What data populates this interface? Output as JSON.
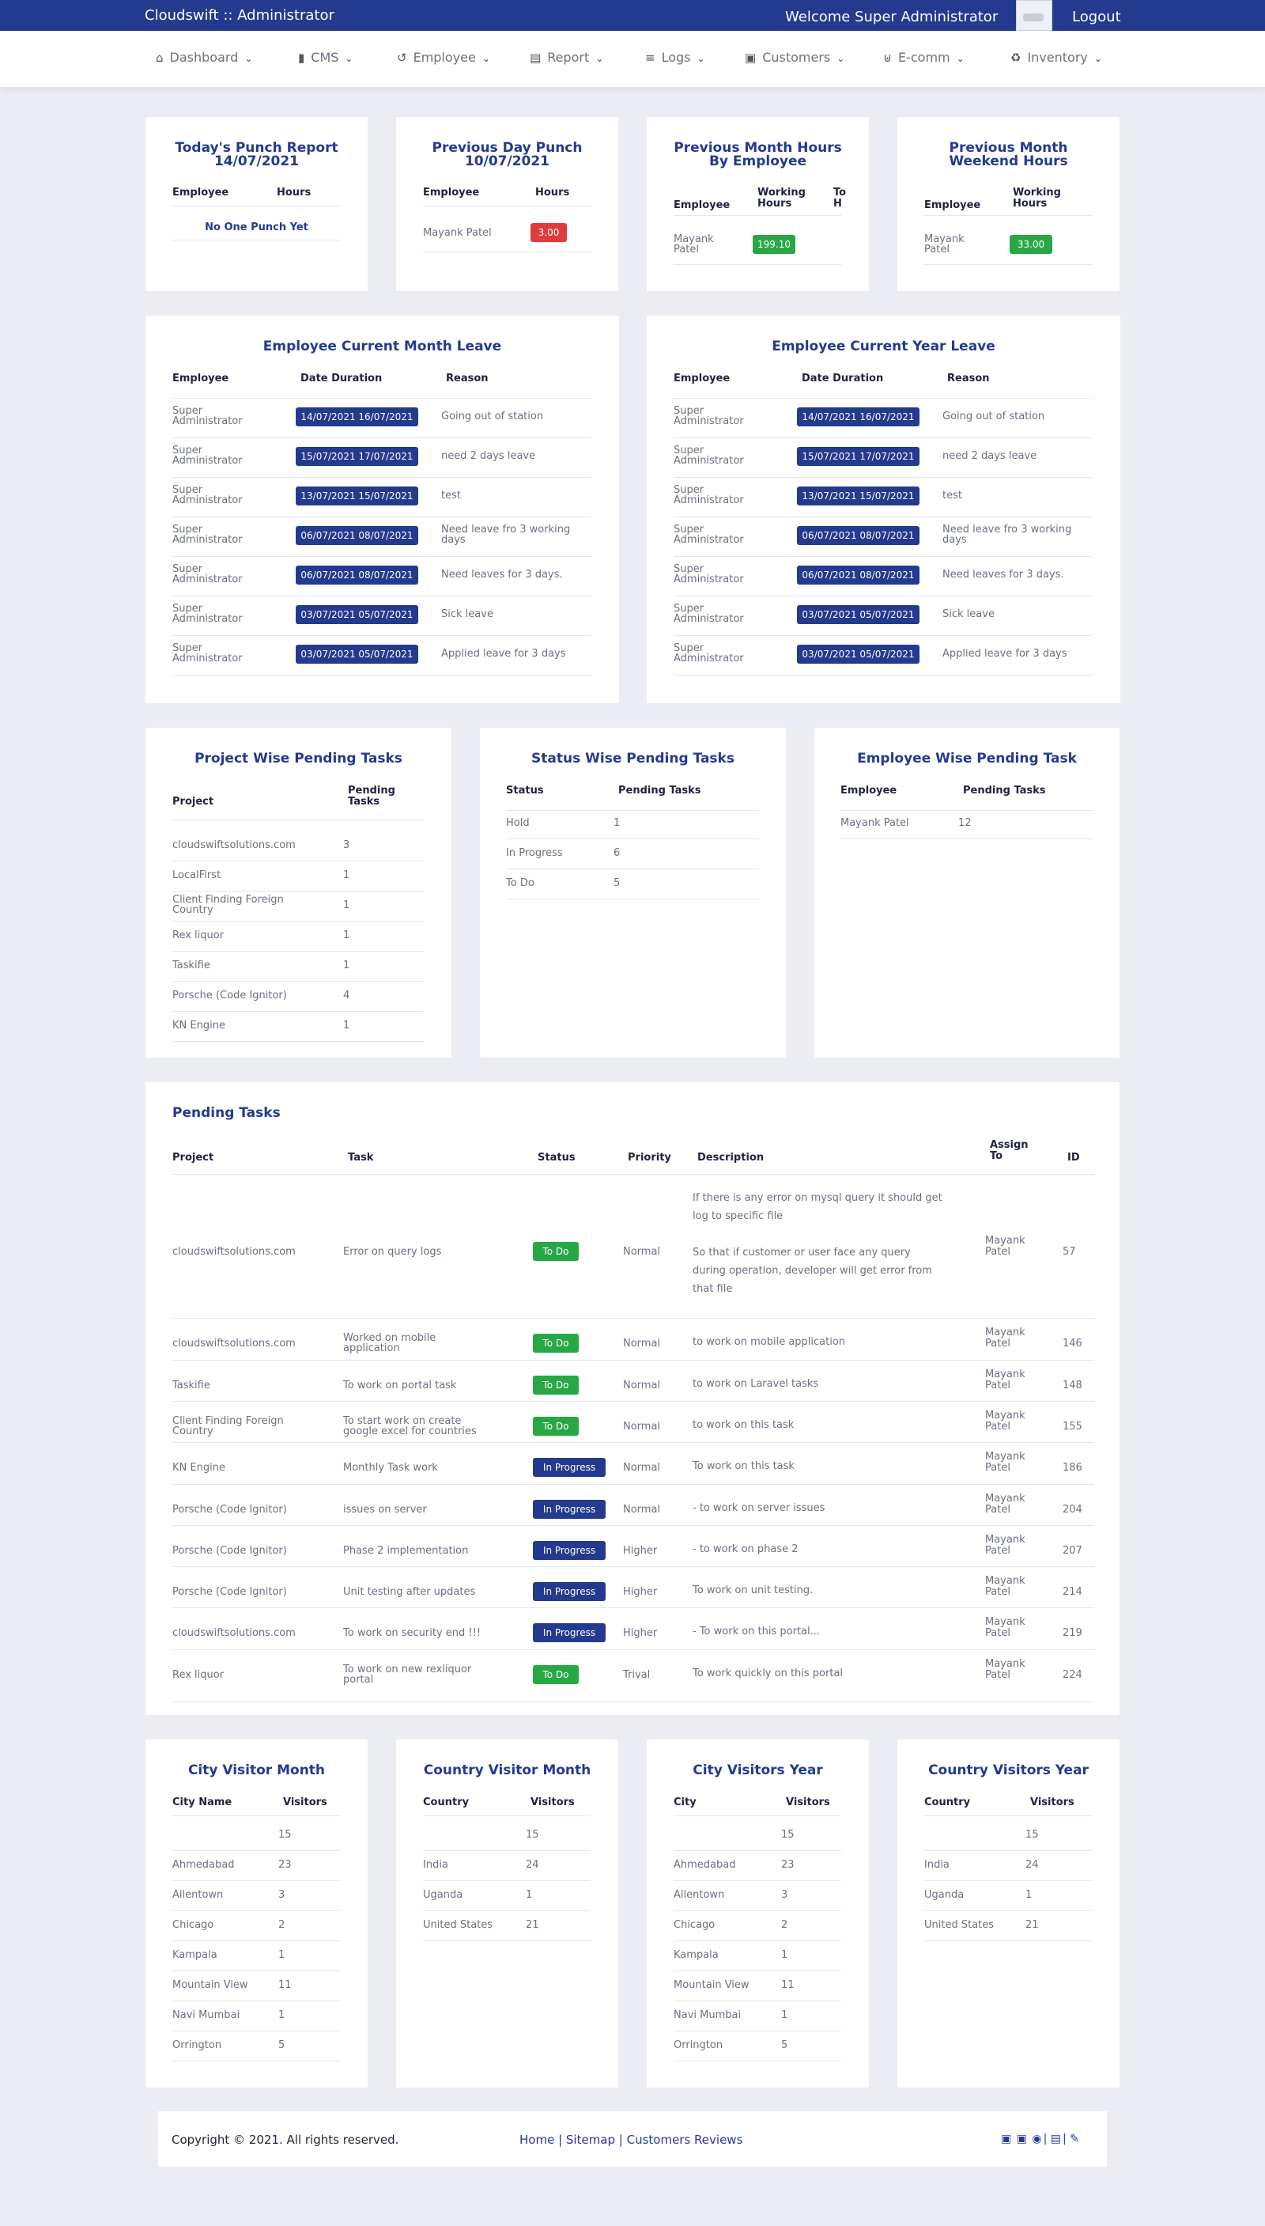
{
  "topbar": {
    "brand": "Cloudswift :: Administrator",
    "welcome": "Welcome Super Administrator",
    "logout": "Logout"
  },
  "nav": [
    {
      "label": "Dashboard",
      "icon": "home-icon",
      "glyph": "⌂"
    },
    {
      "label": "CMS",
      "icon": "mobile-icon",
      "glyph": "▮"
    },
    {
      "label": "Employee",
      "icon": "history-icon",
      "glyph": "↺"
    },
    {
      "label": "Report",
      "icon": "book-icon",
      "glyph": "▤"
    },
    {
      "label": "Logs",
      "icon": "list-icon",
      "glyph": "≡"
    },
    {
      "label": "Customers",
      "icon": "gallery-icon",
      "glyph": "▣"
    },
    {
      "label": "E-comm",
      "icon": "basket-icon",
      "glyph": "⊎"
    },
    {
      "label": "Inventory",
      "icon": "recycle-icon",
      "glyph": "♻"
    }
  ],
  "punch_today": {
    "title1": "Today's Punch Report",
    "title2": "14/07/2021",
    "h_employee": "Employee",
    "h_hours": "Hours",
    "empty": "No One Punch Yet"
  },
  "punch_prev": {
    "title1": "Previous Day Punch",
    "title2": "10/07/2021",
    "h_employee": "Employee",
    "h_hours": "Hours",
    "rows": [
      {
        "employee": "Mayank Patel",
        "hours": "3.00"
      }
    ]
  },
  "month_hours": {
    "title1": "Previous Month Hours",
    "title2": "By Employee",
    "h_employee": "Employee",
    "h_working1": "Working",
    "h_working2": "Hours",
    "h_extra1": "To",
    "h_extra2": "H",
    "rows": [
      {
        "emp1": "Mayank",
        "emp2": "Patel",
        "hours": "199.10"
      }
    ]
  },
  "weekend_hours": {
    "title1": "Previous Month",
    "title2": "Weekend Hours",
    "h_employee": "Employee",
    "h_working1": "Working",
    "h_working2": "Hours",
    "rows": [
      {
        "emp1": "Mayank",
        "emp2": "Patel",
        "hours": "33.00"
      }
    ]
  },
  "leave_month": {
    "title": "Employee Current Month Leave",
    "h_employee": "Employee",
    "h_date": "Date Duration",
    "h_reason": "Reason",
    "rows": [
      {
        "emp1": "Super",
        "emp2": "Administrator",
        "date": "14/07/2021 16/07/2021",
        "reason1": "Going out of station",
        "reason2": ""
      },
      {
        "emp1": "Super",
        "emp2": "Administrator",
        "date": "15/07/2021 17/07/2021",
        "reason1": "need 2 days leave",
        "reason2": ""
      },
      {
        "emp1": "Super",
        "emp2": "Administrator",
        "date": "13/07/2021 15/07/2021",
        "reason1": "test",
        "reason2": ""
      },
      {
        "emp1": "Super",
        "emp2": "Administrator",
        "date": "06/07/2021 08/07/2021",
        "reason1": "Need leave fro 3 working",
        "reason2": "days"
      },
      {
        "emp1": "Super",
        "emp2": "Administrator",
        "date": "06/07/2021 08/07/2021",
        "reason1": "Need leaves for 3 days.",
        "reason2": ""
      },
      {
        "emp1": "Super",
        "emp2": "Administrator",
        "date": "03/07/2021 05/07/2021",
        "reason1": "Sick leave",
        "reason2": ""
      },
      {
        "emp1": "Super",
        "emp2": "Administrator",
        "date": "03/07/2021 05/07/2021",
        "reason1": "Applied leave for 3 days",
        "reason2": ""
      }
    ]
  },
  "leave_year": {
    "title": "Employee Current Year Leave",
    "h_employee": "Employee",
    "h_date": "Date Duration",
    "h_reason": "Reason",
    "rows": [
      {
        "emp1": "Super",
        "emp2": "Administrator",
        "date": "14/07/2021 16/07/2021",
        "reason1": "Going out of station",
        "reason2": ""
      },
      {
        "emp1": "Super",
        "emp2": "Administrator",
        "date": "15/07/2021 17/07/2021",
        "reason1": "need 2 days leave",
        "reason2": ""
      },
      {
        "emp1": "Super",
        "emp2": "Administrator",
        "date": "13/07/2021 15/07/2021",
        "reason1": "test",
        "reason2": ""
      },
      {
        "emp1": "Super",
        "emp2": "Administrator",
        "date": "06/07/2021 08/07/2021",
        "reason1": "Need leave fro 3 working",
        "reason2": "days"
      },
      {
        "emp1": "Super",
        "emp2": "Administrator",
        "date": "06/07/2021 08/07/2021",
        "reason1": "Need leaves for 3 days.",
        "reason2": ""
      },
      {
        "emp1": "Super",
        "emp2": "Administrator",
        "date": "03/07/2021 05/07/2021",
        "reason1": "Sick leave",
        "reason2": ""
      },
      {
        "emp1": "Super",
        "emp2": "Administrator",
        "date": "03/07/2021 05/07/2021",
        "reason1": "Applied leave for 3 days",
        "reason2": ""
      }
    ]
  },
  "project_pending": {
    "title": "Project Wise Pending Tasks",
    "h_project": "Project",
    "h_pending1": "Pending",
    "h_pending2": "Tasks",
    "rows": [
      {
        "p1": "cloudswiftsolutions.com",
        "p2": "",
        "n": "3"
      },
      {
        "p1": "LocalFirst",
        "p2": "",
        "n": "1"
      },
      {
        "p1": "Client Finding Foreign",
        "p2": "Country",
        "n": "1"
      },
      {
        "p1": "Rex liquor",
        "p2": "",
        "n": "1"
      },
      {
        "p1": "Taskifie",
        "p2": "",
        "n": "1"
      },
      {
        "p1": "Porsche (Code Ignitor)",
        "p2": "",
        "n": "4"
      },
      {
        "p1": "KN Engine",
        "p2": "",
        "n": "1"
      }
    ]
  },
  "status_pending": {
    "title": "Status Wise Pending Tasks",
    "h_status": "Status",
    "h_pending": "Pending Tasks",
    "rows": [
      {
        "status": "Hold",
        "n": "1"
      },
      {
        "status": "In Progress",
        "n": "6"
      },
      {
        "status": "To Do",
        "n": "5"
      }
    ]
  },
  "employee_pending": {
    "title": "Employee Wise Pending Task",
    "h_employee": "Employee",
    "h_pending": "Pending Tasks",
    "rows": [
      {
        "employee": "Mayank Patel",
        "n": "12"
      }
    ]
  },
  "pending_tasks": {
    "title": "Pending Tasks",
    "h_project": "Project",
    "h_task": "Task",
    "h_status": "Status",
    "h_priority": "Priority",
    "h_desc": "Description",
    "h_assign1": "Assign",
    "h_assign2": "To",
    "h_id": "ID",
    "first_desc": [
      "If there is any error on mysql query it should get",
      "log to specific file",
      "",
      "So that if customer or user face any query",
      "during operation, developer will get error from",
      "that file"
    ],
    "rows": [
      {
        "project1": "cloudswiftsolutions.com",
        "project2": "",
        "task1": "Error on query logs",
        "task2": "",
        "status": "To Do",
        "priority": "Normal",
        "desc": "",
        "a1": "Mayank",
        "a2": "Patel",
        "id": "57"
      },
      {
        "project1": "cloudswiftsolutions.com",
        "project2": "",
        "task1": "Worked on mobile",
        "task2": "application",
        "status": "To Do",
        "priority": "Normal",
        "desc": "to work on mobile application",
        "a1": "Mayank",
        "a2": "Patel",
        "id": "146"
      },
      {
        "project1": "Taskifie",
        "project2": "",
        "task1": "To work on portal task",
        "task2": "",
        "status": "To Do",
        "priority": "Normal",
        "desc": "to work on Laravel tasks",
        "a1": "Mayank",
        "a2": "Patel",
        "id": "148"
      },
      {
        "project1": "Client Finding Foreign",
        "project2": "Country",
        "task1": "To start work on create",
        "task2": "google excel for countries",
        "status": "To Do",
        "priority": "Normal",
        "desc": "to work on this task",
        "a1": "Mayank",
        "a2": "Patel",
        "id": "155"
      },
      {
        "project1": "KN Engine",
        "project2": "",
        "task1": "Monthly Task work",
        "task2": "",
        "status": "In Progress",
        "priority": "Normal",
        "desc": "To work on this task",
        "a1": "Mayank",
        "a2": "Patel",
        "id": "186"
      },
      {
        "project1": "Porsche (Code Ignitor)",
        "project2": "",
        "task1": "issues on server",
        "task2": "",
        "status": "In Progress",
        "priority": "Normal",
        "desc": "- to work on server issues",
        "a1": "Mayank",
        "a2": "Patel",
        "id": "204"
      },
      {
        "project1": "Porsche (Code Ignitor)",
        "project2": "",
        "task1": "Phase 2 implementation",
        "task2": "",
        "status": "In Progress",
        "priority": "Higher",
        "desc": "- to work on phase 2",
        "a1": "Mayank",
        "a2": "Patel",
        "id": "207"
      },
      {
        "project1": "Porsche (Code Ignitor)",
        "project2": "",
        "task1": "Unit testing after updates",
        "task2": "",
        "status": "In Progress",
        "priority": "Higher",
        "desc": "To work on unit testing.",
        "a1": "Mayank",
        "a2": "Patel",
        "id": "214"
      },
      {
        "project1": "cloudswiftsolutions.com",
        "project2": "",
        "task1": "To work on security end !!!",
        "task2": "",
        "status": "In Progress",
        "priority": "Higher",
        "desc": "- To work on this portal...",
        "a1": "Mayank",
        "a2": "Patel",
        "id": "219"
      },
      {
        "project1": "Rex liquor",
        "project2": "",
        "task1": "To work on new rexliquor",
        "task2": "portal",
        "status": "To Do",
        "priority": "Trival",
        "desc": "To work quickly on this portal",
        "a1": "Mayank",
        "a2": "Patel",
        "id": "224"
      }
    ]
  },
  "city_month": {
    "title": "City Visitor Month",
    "h1": "City Name",
    "h2": "Visitors",
    "rows": [
      {
        "name": "",
        "n": "15"
      },
      {
        "name": "Ahmedabad",
        "n": "23"
      },
      {
        "name": "Allentown",
        "n": "3"
      },
      {
        "name": "Chicago",
        "n": "2"
      },
      {
        "name": "Kampala",
        "n": "1"
      },
      {
        "name": "Mountain View",
        "n": "11"
      },
      {
        "name": "Navi Mumbai",
        "n": "1"
      },
      {
        "name": "Orrington",
        "n": "5"
      }
    ]
  },
  "country_month": {
    "title": "Country Visitor Month",
    "h1": "Country",
    "h2": "Visitors",
    "rows": [
      {
        "name": "",
        "n": "15"
      },
      {
        "name": "India",
        "n": "24"
      },
      {
        "name": "Uganda",
        "n": "1"
      },
      {
        "name": "United States",
        "n": "21"
      }
    ]
  },
  "city_year": {
    "title": "City Visitors Year",
    "h1": "City",
    "h2": "Visitors",
    "rows": [
      {
        "name": "",
        "n": "15"
      },
      {
        "name": "Ahmedabad",
        "n": "23"
      },
      {
        "name": "Allentown",
        "n": "3"
      },
      {
        "name": "Chicago",
        "n": "2"
      },
      {
        "name": "Kampala",
        "n": "1"
      },
      {
        "name": "Mountain View",
        "n": "11"
      },
      {
        "name": "Navi Mumbai",
        "n": "1"
      },
      {
        "name": "Orrington",
        "n": "5"
      }
    ]
  },
  "country_year": {
    "title": "Country Visitors Year",
    "h1": "Country",
    "h2": "Visitors",
    "rows": [
      {
        "name": "",
        "n": "15"
      },
      {
        "name": "India",
        "n": "24"
      },
      {
        "name": "Uganda",
        "n": "1"
      },
      {
        "name": "United States",
        "n": "21"
      }
    ]
  },
  "footer": {
    "copyright": "Copyright © 2021. All rights reserved.",
    "home": "Home",
    "sitemap": "Sitemap",
    "reviews": "Customers Reviews",
    "sep": " | "
  },
  "colors": {
    "primary": "#243a8f",
    "success": "#28a745",
    "danger": "#e03c3c",
    "background": "#ecedf3"
  }
}
